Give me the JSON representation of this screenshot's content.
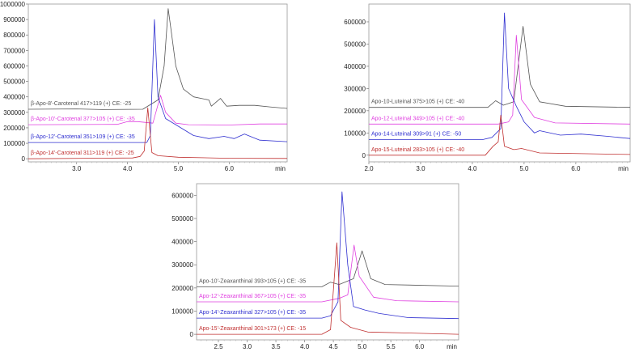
{
  "chart_data": [
    {
      "type": "line",
      "xunit_label": "min",
      "xlim": [
        2.05,
        7.14
      ],
      "ylim": [
        -20000,
        1000000
      ],
      "x_ticks": [
        "3.0",
        "4.0",
        "5.0",
        "6.0"
      ],
      "y_ticks": [
        "0",
        "100000",
        "200000",
        "300000",
        "400000",
        "500000",
        "600000",
        "700000",
        "800000",
        "900000",
        "1000000"
      ],
      "grid": false,
      "series": [
        {
          "name": "β-Apo-8'-Carotenal  417>119 (+) CE: -25",
          "color": "#555555",
          "points": [
            [
              2.05,
              320000
            ],
            [
              3.0,
              322000
            ],
            [
              3.5,
              318000
            ],
            [
              4.3,
              320000
            ],
            [
              4.5,
              360000
            ],
            [
              4.6,
              380000
            ],
            [
              4.72,
              600000
            ],
            [
              4.8,
              970000
            ],
            [
              4.87,
              800000
            ],
            [
              4.95,
              600000
            ],
            [
              5.1,
              450000
            ],
            [
              5.3,
              400000
            ],
            [
              5.6,
              380000
            ],
            [
              5.65,
              340000
            ],
            [
              5.83,
              390000
            ],
            [
              5.95,
              340000
            ],
            [
              6.2,
              345000
            ],
            [
              6.5,
              345000
            ],
            [
              6.8,
              335000
            ],
            [
              7.14,
              325000
            ]
          ]
        },
        {
          "name": "β-Apo-10'-Carotenal  377>105 (+) CE: -35",
          "color": "#e040e0",
          "points": [
            [
              2.05,
              220000
            ],
            [
              3.8,
              222000
            ],
            [
              4.0,
              240000
            ],
            [
              4.2,
              240000
            ],
            [
              4.5,
              230000
            ],
            [
              4.65,
              410000
            ],
            [
              4.75,
              300000
            ],
            [
              4.95,
              230000
            ],
            [
              5.2,
              220000
            ],
            [
              6.0,
              218000
            ],
            [
              6.6,
              225000
            ],
            [
              7.14,
              225000
            ]
          ]
        },
        {
          "name": "β-Apo-12'-Carotenal   351>109 (+) CE: -35",
          "color": "#3030d0",
          "points": [
            [
              2.05,
              105000
            ],
            [
              4.38,
              105000
            ],
            [
              4.45,
              150000
            ],
            [
              4.53,
              900000
            ],
            [
              4.6,
              400000
            ],
            [
              4.75,
              260000
            ],
            [
              4.95,
              220000
            ],
            [
              5.3,
              150000
            ],
            [
              5.6,
              130000
            ],
            [
              5.9,
              145000
            ],
            [
              6.1,
              130000
            ],
            [
              6.3,
              160000
            ],
            [
              6.6,
              120000
            ],
            [
              7.14,
              110000
            ]
          ]
        },
        {
          "name": "β-Apo-14'-Carotenal   311>119 (+) CE: -25",
          "color": "#c03030",
          "points": [
            [
              2.05,
              0
            ],
            [
              4.1,
              5000
            ],
            [
              4.25,
              15000
            ],
            [
              4.33,
              50000
            ],
            [
              4.4,
              330000
            ],
            [
              4.48,
              40000
            ],
            [
              4.6,
              20000
            ],
            [
              5.0,
              10000
            ],
            [
              6.0,
              3000
            ],
            [
              7.14,
              2000
            ]
          ]
        }
      ]
    },
    {
      "type": "line",
      "xunit_label": "min",
      "xlim": [
        2.0,
        7.05
      ],
      "ylim": [
        -30000,
        680000
      ],
      "x_ticks": [
        "2.0",
        "3.0",
        "4.0",
        "5.0",
        "6.0"
      ],
      "y_ticks": [
        "0",
        "100000",
        "200000",
        "300000",
        "400000",
        "500000",
        "600000"
      ],
      "grid": false,
      "series": [
        {
          "name": "Apo-10-Luteinal  375>105 (+) CE: -40",
          "color": "#555555",
          "points": [
            [
              2.0,
              215000
            ],
            [
              4.3,
              215000
            ],
            [
              4.45,
              245000
            ],
            [
              4.6,
              225000
            ],
            [
              4.8,
              240000
            ],
            [
              4.98,
              580000
            ],
            [
              5.12,
              320000
            ],
            [
              5.3,
              240000
            ],
            [
              5.8,
              220000
            ],
            [
              7.05,
              215000
            ]
          ]
        },
        {
          "name": "Apo-12-Luteinal  349>105 (+) CE: -40",
          "color": "#e040e0",
          "points": [
            [
              2.0,
              140000
            ],
            [
              4.5,
              140000
            ],
            [
              4.7,
              150000
            ],
            [
              4.78,
              180000
            ],
            [
              4.85,
              540000
            ],
            [
              4.95,
              250000
            ],
            [
              5.2,
              170000
            ],
            [
              5.6,
              145000
            ],
            [
              7.05,
              140000
            ]
          ]
        },
        {
          "name": "Apo-14-Luteinal  309>91  (+) CE: -50",
          "color": "#3030d0",
          "points": [
            [
              2.0,
              70000
            ],
            [
              4.2,
              70000
            ],
            [
              4.38,
              80000
            ],
            [
              4.55,
              120000
            ],
            [
              4.62,
              640000
            ],
            [
              4.7,
              300000
            ],
            [
              4.85,
              220000
            ],
            [
              5.0,
              150000
            ],
            [
              5.2,
              100000
            ],
            [
              5.3,
              110000
            ],
            [
              5.7,
              90000
            ],
            [
              6.1,
              95000
            ],
            [
              6.6,
              85000
            ],
            [
              7.05,
              75000
            ]
          ]
        },
        {
          "name": "Apo-15-Luteinal  283>105 (+) CE: -40",
          "color": "#c03030",
          "points": [
            [
              2.0,
              0
            ],
            [
              4.25,
              0
            ],
            [
              4.4,
              40000
            ],
            [
              4.5,
              60000
            ],
            [
              4.55,
              180000
            ],
            [
              4.62,
              40000
            ],
            [
              4.8,
              25000
            ],
            [
              4.95,
              30000
            ],
            [
              5.3,
              10000
            ],
            [
              7.05,
              3000
            ]
          ]
        }
      ]
    },
    {
      "type": "line",
      "xunit_label": "min",
      "xlim": [
        2.12,
        6.68
      ],
      "ylim": [
        -24000,
        650000
      ],
      "x_ticks": [
        "2.5",
        "3.0",
        "3.5",
        "4.0",
        "4.5",
        "5.0",
        "5.5",
        "6.0"
      ],
      "y_ticks": [
        "0",
        "100000",
        "200000",
        "300000",
        "400000",
        "500000",
        "600000"
      ],
      "grid": false,
      "series": [
        {
          "name": "Apo-10'-Zeaxanthinal   393>105 (+) CE: -35",
          "color": "#555555",
          "points": [
            [
              2.12,
              205000
            ],
            [
              4.3,
              205000
            ],
            [
              4.45,
              225000
            ],
            [
              4.6,
              215000
            ],
            [
              4.85,
              240000
            ],
            [
              5.0,
              360000
            ],
            [
              5.15,
              240000
            ],
            [
              5.4,
              215000
            ],
            [
              6.68,
              208000
            ]
          ]
        },
        {
          "name": "Apo-12'-Zeaxanthinal   367>105 (+) CE: -35",
          "color": "#e040e0",
          "points": [
            [
              2.12,
              140000
            ],
            [
              4.3,
              140000
            ],
            [
              4.6,
              155000
            ],
            [
              4.75,
              170000
            ],
            [
              4.86,
              385000
            ],
            [
              4.95,
              250000
            ],
            [
              5.2,
              160000
            ],
            [
              5.6,
              145000
            ],
            [
              6.68,
              140000
            ]
          ]
        },
        {
          "name": "Apo-14'-Zeaxanthinal   327>105 (+) CE: -35",
          "color": "#3030d0",
          "points": [
            [
              2.12,
              70000
            ],
            [
              4.3,
              70000
            ],
            [
              4.45,
              80000
            ],
            [
              4.58,
              140000
            ],
            [
              4.65,
              615000
            ],
            [
              4.75,
              300000
            ],
            [
              4.85,
              120000
            ],
            [
              5.05,
              105000
            ],
            [
              5.3,
              90000
            ],
            [
              5.8,
              72000
            ],
            [
              6.68,
              68000
            ]
          ]
        },
        {
          "name": "Apo-15'-Zeaxanthinal   301>173 (+) CE: -15",
          "color": "#c03030",
          "points": [
            [
              2.12,
              0
            ],
            [
              4.3,
              0
            ],
            [
              4.45,
              20000
            ],
            [
              4.56,
              395000
            ],
            [
              4.63,
              60000
            ],
            [
              4.8,
              30000
            ],
            [
              5.1,
              10000
            ],
            [
              6.68,
              0
            ]
          ]
        }
      ]
    }
  ]
}
